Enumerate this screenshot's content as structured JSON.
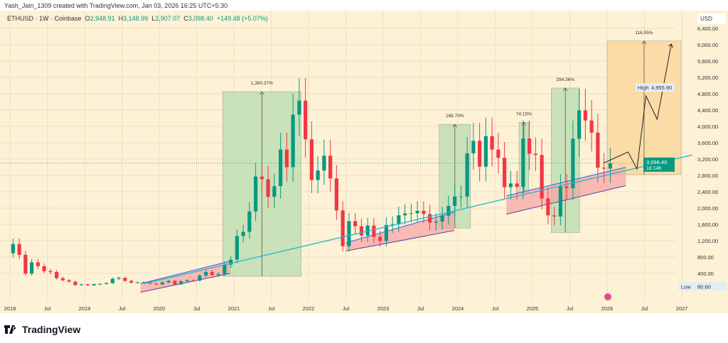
{
  "credit": "Yash_Jain_1309 created with TradingView.com, Jan 03, 2026 16:25 UTC+5:30",
  "legend": {
    "symbol": "ETHUSD · 1W · Coinbase",
    "o_label": "O",
    "o": "2,948.91",
    "h_label": "H",
    "h": "3,148.99",
    "l_label": "L",
    "l": "2,907.07",
    "c_label": "C",
    "c": "3,098.40",
    "change": "+149.48 (+5.07%)"
  },
  "currency": "USD",
  "brand": "TradingView",
  "colors": {
    "background": "#fdf1d6",
    "up": "#089981",
    "down": "#f23645",
    "trend": "#22b8cf",
    "green_box": "#b7dcb0",
    "orange_box": "#fbd79a",
    "channel": "#f5a3a3"
  },
  "chart_data": {
    "type": "candlestick",
    "interval": "monthly-approx",
    "start": "2018-01",
    "closes": [
      1118,
      855,
      395,
      670,
      577,
      455,
      433,
      283,
      232,
      198,
      113,
      133,
      107,
      136,
      141,
      162,
      268,
      290,
      218,
      172,
      180,
      182,
      152,
      130,
      180,
      218,
      133,
      207,
      231,
      226,
      345,
      434,
      360,
      386,
      615,
      737,
      1314,
      1418,
      1919,
      2773,
      2707,
      2275,
      2536,
      3433,
      3001,
      4288,
      4631,
      3683,
      2688,
      2920,
      3282,
      2727,
      1942,
      1067,
      1679,
      1554,
      1328,
      1572,
      1295,
      1196,
      1585,
      1605,
      1822,
      1869,
      1874,
      1934,
      1856,
      1645,
      1671,
      1815,
      2052,
      2282,
      2283,
      3340,
      3646,
      3015,
      3762,
      3433,
      3232,
      2513,
      2602,
      2518,
      3703,
      3332,
      3300,
      2237,
      1822,
      1794,
      2528,
      2486,
      3697,
      4391,
      4145,
      3848,
      2990,
      2967,
      3098
    ],
    "yticks": [
      "6,400.00",
      "6,000.00",
      "5,600.00",
      "5,200.00",
      "4,800.00",
      "4,400.00",
      "4,000.00",
      "3,600.00",
      "3,200.00",
      "2,800.00",
      "2,400.00",
      "2,000.00",
      "1,600.00",
      "1,200.00",
      "800.00",
      "400.00"
    ],
    "ytick_values": [
      6400,
      6000,
      5600,
      5200,
      4800,
      4400,
      4000,
      3600,
      3200,
      2800,
      2400,
      2000,
      1600,
      1200,
      800,
      400
    ],
    "xticks": [
      "2018",
      "Jul",
      "2019",
      "Jul",
      "2020",
      "Jul",
      "2021",
      "Jul",
      "2022",
      "Jul",
      "2023",
      "Jul",
      "2024",
      "Jul",
      "2025",
      "Jul",
      "2026",
      "Jul",
      "2027"
    ],
    "xtick_values": [
      2018,
      2018.5,
      2019,
      2019.5,
      2020,
      2020.5,
      2021,
      2021.5,
      2022,
      2022.5,
      2023,
      2023.5,
      2024,
      2024.5,
      2025,
      2025.5,
      2026,
      2026.5,
      2027
    ],
    "ylim": [
      0,
      6500
    ],
    "xlim": [
      2017.87,
      2026.92
    ],
    "price_labels": {
      "high_label": "High",
      "high": "4,955.90",
      "low_label": "Low",
      "low": "80.60",
      "last": "3,098.40",
      "countdown": "1d 14h"
    },
    "ranges": [
      {
        "label": "1,380.37%",
        "x0": 2020.85,
        "x1": 2021.9,
        "y0": 330,
        "y1": 4850,
        "color": "green"
      },
      {
        "label": "168.70%",
        "x0": 2023.75,
        "x1": 2024.17,
        "y0": 1510,
        "y1": 4050,
        "color": "green"
      },
      {
        "label": "74.15%",
        "x0": 2024.82,
        "x1": 2024.95,
        "y0": 2370,
        "y1": 4100,
        "color": "green"
      },
      {
        "label": "294.36%",
        "x0": 2025.25,
        "x1": 2025.63,
        "y0": 1400,
        "y1": 4940,
        "color": "green"
      },
      {
        "label": "116.55%",
        "x0": 2026.0,
        "x1": 2026.99,
        "y0": 2820,
        "y1": 6090,
        "color": "orange"
      }
    ],
    "trendline": [
      [
        2019.8,
        150
      ],
      [
        2027.14,
        3300
      ]
    ],
    "channels": [
      [
        [
          2019.75,
          -60
        ],
        [
          2020.95,
          400
        ],
        [
          2020.95,
          700
        ],
        [
          2019.75,
          150
        ]
      ],
      [
        [
          2022.5,
          950
        ],
        [
          2023.95,
          1450
        ],
        [
          2023.95,
          1900
        ],
        [
          2022.5,
          1150
        ]
      ],
      [
        [
          2024.65,
          1850
        ],
        [
          2026.25,
          2550
        ],
        [
          2026.25,
          3000
        ],
        [
          2024.65,
          2300
        ]
      ]
    ],
    "projection": [
      [
        2025.95,
        3100
      ],
      [
        2026.28,
        3374
      ],
      [
        2026.4,
        2957
      ],
      [
        2026.52,
        4748
      ],
      [
        2026.67,
        4174
      ],
      [
        2026.86,
        6017
      ]
    ]
  }
}
